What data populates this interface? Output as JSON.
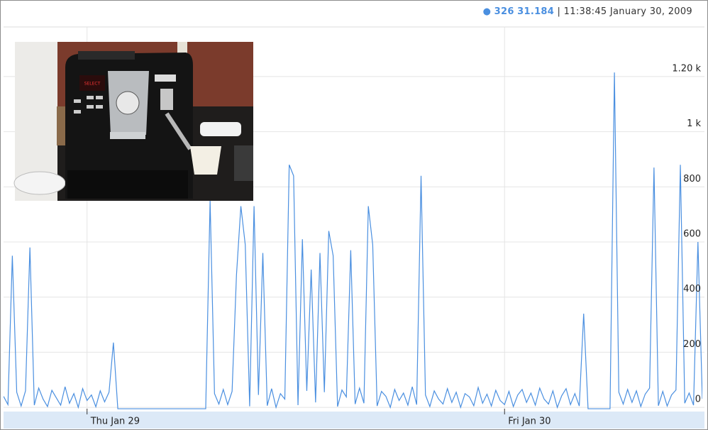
{
  "chart_data": {
    "type": "line",
    "series_name": "326",
    "current_value": 31.184,
    "timestamp": "11:38:45 January 30, 2009",
    "color": "#4a8fe0",
    "ylim": [
      -10,
      1380
    ],
    "yticks": [
      0,
      200,
      400,
      600,
      800,
      {
        "value": 1000,
        "label": "1 k"
      },
      {
        "value": 1200,
        "label": "1.20 k"
      }
    ],
    "grid": true,
    "categories": [
      null,
      null,
      null,
      null,
      null,
      null,
      null,
      null,
      null,
      null,
      null,
      null,
      null,
      null,
      null,
      null,
      null,
      null,
      null,
      "Thu Jan 29",
      null,
      null,
      null,
      null,
      null,
      null,
      null,
      null,
      null,
      null,
      null,
      null,
      null,
      null,
      null,
      null,
      null,
      null,
      null,
      null,
      null,
      null,
      null,
      null,
      null,
      null,
      null,
      null,
      null,
      null,
      null,
      null,
      null,
      null,
      null,
      null,
      null,
      null,
      null,
      null,
      null,
      null,
      null,
      null,
      null,
      null,
      null,
      null,
      null,
      null,
      null,
      null,
      null,
      null,
      null,
      null,
      null,
      null,
      null,
      null,
      null,
      null,
      null,
      null,
      null,
      null,
      null,
      null,
      null,
      null,
      null,
      null,
      null,
      null,
      null,
      null,
      null,
      null,
      null,
      null,
      null,
      null,
      null,
      null,
      null,
      null,
      null,
      null,
      null,
      null,
      null,
      null,
      null,
      null,
      "Fri Jan 30",
      null,
      null,
      null,
      null,
      null,
      null,
      null,
      null,
      null,
      null,
      null,
      null,
      null,
      null,
      null,
      null,
      null,
      null,
      null,
      null,
      null,
      null,
      null,
      null,
      null,
      null,
      null,
      null,
      null,
      null,
      null,
      null,
      null,
      null,
      null,
      null,
      null,
      null,
      null,
      null,
      null,
      null,
      null,
      null,
      null
    ],
    "values": [
      40,
      10,
      550,
      55,
      5,
      60,
      580,
      8,
      70,
      30,
      3,
      62,
      35,
      8,
      75,
      15,
      50,
      0,
      68,
      25,
      45,
      2,
      60,
      20,
      55,
      235,
      -5,
      -5,
      -5,
      -5,
      -5,
      -5,
      -5,
      -5,
      -5,
      -5,
      -5,
      -5,
      -5,
      -5,
      -5,
      -5,
      -5,
      -5,
      -5,
      -5,
      -5,
      750,
      50,
      12,
      65,
      10,
      58,
      480,
      730,
      590,
      4,
      730,
      45,
      560,
      6,
      68,
      0,
      50,
      30,
      880,
      840,
      8,
      610,
      60,
      500,
      18,
      560,
      55,
      640,
      550,
      3,
      63,
      38,
      570,
      12,
      70,
      15,
      730,
      590,
      5,
      58,
      40,
      0,
      65,
      25,
      52,
      8,
      75,
      10,
      840,
      45,
      3,
      60,
      30,
      12,
      68,
      18,
      55,
      0,
      50,
      38,
      6,
      72,
      15,
      48,
      5,
      62,
      25,
      10,
      58,
      3,
      45,
      65,
      18,
      52,
      8,
      70,
      30,
      12,
      60,
      0,
      42,
      68,
      10,
      50,
      5,
      340,
      -5,
      -5,
      -5,
      -5,
      -5,
      -5,
      1215,
      55,
      12,
      65,
      18,
      60,
      3,
      48,
      70,
      870,
      6,
      58,
      5,
      45,
      63,
      880,
      15,
      52,
      8,
      600,
      31.184
    ]
  }
}
